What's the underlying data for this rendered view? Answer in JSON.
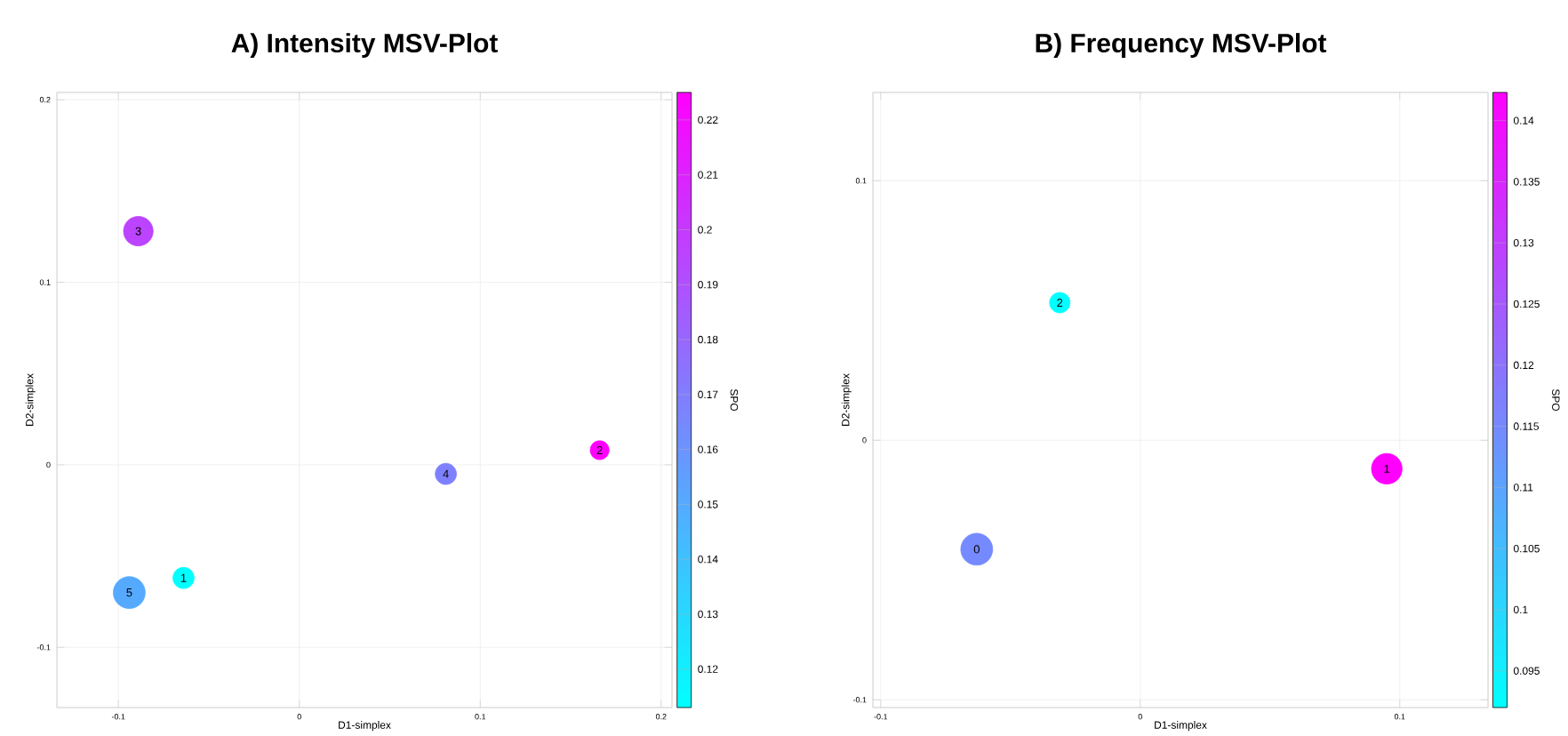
{
  "chart_data": [
    {
      "type": "bubble",
      "title": "A) Intensity MSV-Plot",
      "xlabel": "D1-simplex",
      "ylabel": "D2-simplex",
      "clabel": "SPO",
      "x": [
        -0.089,
        0.166,
        0.081,
        -0.064,
        -0.094
      ],
      "values": [
        0.128,
        0.008,
        -0.005,
        -0.062,
        -0.07
      ],
      "sizes": [
        0.86,
        0.35,
        0.44,
        0.44,
        1
      ],
      "cvalues": [
        0.195,
        0.225,
        0.168,
        0.113,
        0.15
      ],
      "clim": [
        0.113,
        0.225
      ],
      "cticks": [
        0.12,
        0.13,
        0.14,
        0.15,
        0.16,
        0.17,
        0.18,
        0.19,
        0.2,
        0.21,
        0.22
      ],
      "xlim": [
        -0.134,
        0.206
      ],
      "ylim": [
        -0.133,
        0.204
      ],
      "xticks": [
        -0.1,
        0,
        0.1,
        0.2
      ],
      "yticks": [
        -0.1,
        0,
        0.1,
        0.2
      ],
      "grid": true,
      "annotations": [
        {
          "text": "3",
          "x": -0.089,
          "y": 0.128
        },
        {
          "text": "2",
          "x": 0.166,
          "y": 0.008
        },
        {
          "text": "4",
          "x": 0.081,
          "y": -0.005
        },
        {
          "text": "1",
          "x": -0.064,
          "y": -0.062
        },
        {
          "text": "5",
          "x": -0.094,
          "y": -0.07
        }
      ]
    },
    {
      "type": "bubble",
      "title": "B) Frequency MSV-Plot",
      "xlabel": "D1-simplex",
      "ylabel": "D2-simplex",
      "clabel": "SPO",
      "x": [
        -0.031,
        0.095,
        -0.063
      ],
      "values": [
        0.053,
        -0.011,
        -0.042
      ],
      "sizes": [
        0.41,
        0.92,
        1
      ],
      "cvalues": [
        0.092,
        0.142,
        0.115
      ],
      "clim": [
        0.092,
        0.1423
      ],
      "cticks": [
        0.095,
        0.1,
        0.105,
        0.11,
        0.115,
        0.12,
        0.125,
        0.13,
        0.135,
        0.14
      ],
      "xlim": [
        -0.103,
        0.134
      ],
      "ylim": [
        -0.103,
        0.134
      ],
      "xticks": [
        -0.1,
        0,
        0.1
      ],
      "yticks": [
        -0.1,
        0,
        0.1
      ],
      "grid": true,
      "annotations": [
        {
          "text": "2",
          "x": -0.031,
          "y": 0.053
        },
        {
          "text": "1",
          "x": 0.095,
          "y": -0.011
        },
        {
          "text": "0",
          "x": -0.063,
          "y": -0.042
        }
      ]
    }
  ]
}
